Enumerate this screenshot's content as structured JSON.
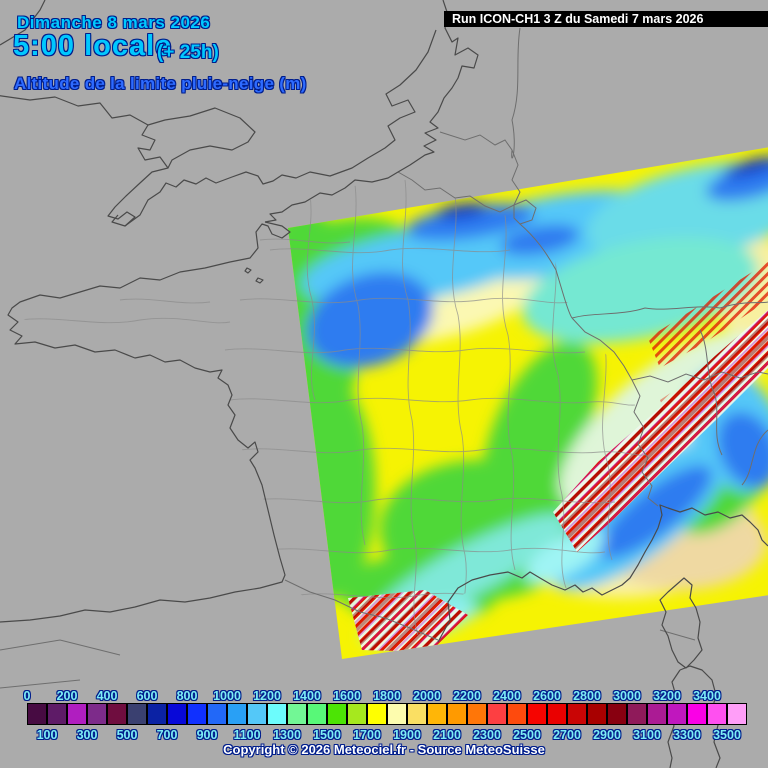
{
  "header": {
    "date_line": "Dimanche 8 mars 2026",
    "time_line": "5:00 locale",
    "offset_label": "(+ 25h)",
    "subtitle": "Altitude de la limite pluie-neige (m)",
    "run_info": "Run ICON-CH1 3 Z du Samedi 7 mars 2026"
  },
  "footer": {
    "copyright": "Copyright © 2026 Meteociel.fr - Source MeteoSuisse"
  },
  "colorbar": {
    "unit": "m",
    "top_labels": [
      "0",
      "200",
      "400",
      "600",
      "800",
      "1000",
      "1200",
      "1400",
      "1600",
      "1800",
      "2000",
      "2200",
      "2400",
      "2600",
      "2800",
      "3000",
      "3200",
      "3400"
    ],
    "bottom_labels": [
      "100",
      "300",
      "500",
      "700",
      "900",
      "1100",
      "1300",
      "1500",
      "1700",
      "1900",
      "2100",
      "2300",
      "2500",
      "2700",
      "2900",
      "3100",
      "3300",
      "3500"
    ],
    "cell_colors": [
      "#470B42",
      "#5E1B67",
      "#B01EC0",
      "#7D2B8A",
      "#6F0D3F",
      "#3A4070",
      "#0B22A4",
      "#0808D8",
      "#1030FF",
      "#2268F8",
      "#29A0F5",
      "#54C8F8",
      "#6CFCFC",
      "#72F795",
      "#58F878",
      "#4CE405",
      "#A6E81E",
      "#FFFF00",
      "#FDFCAE",
      "#FADF63",
      "#FFB607",
      "#FF9A00",
      "#FF7608",
      "#FD3F42",
      "#FE4A0D",
      "#F60400",
      "#EA0000",
      "#C90505",
      "#A80000",
      "#880010",
      "#8F1A5A",
      "#AB1B94",
      "#C017BE",
      "#FA00E6",
      "#FF50F0",
      "#FF9EF8"
    ]
  },
  "colors": {
    "map_background": "#ABABAB",
    "header_cyan": "#00C8FF",
    "header_blue": "#2E6BFF",
    "outline_navy": "#001E8C",
    "scale_label_cyan": "#7DEDF5",
    "run_box_background": "#000000",
    "run_box_text": "#FFFFFF"
  }
}
